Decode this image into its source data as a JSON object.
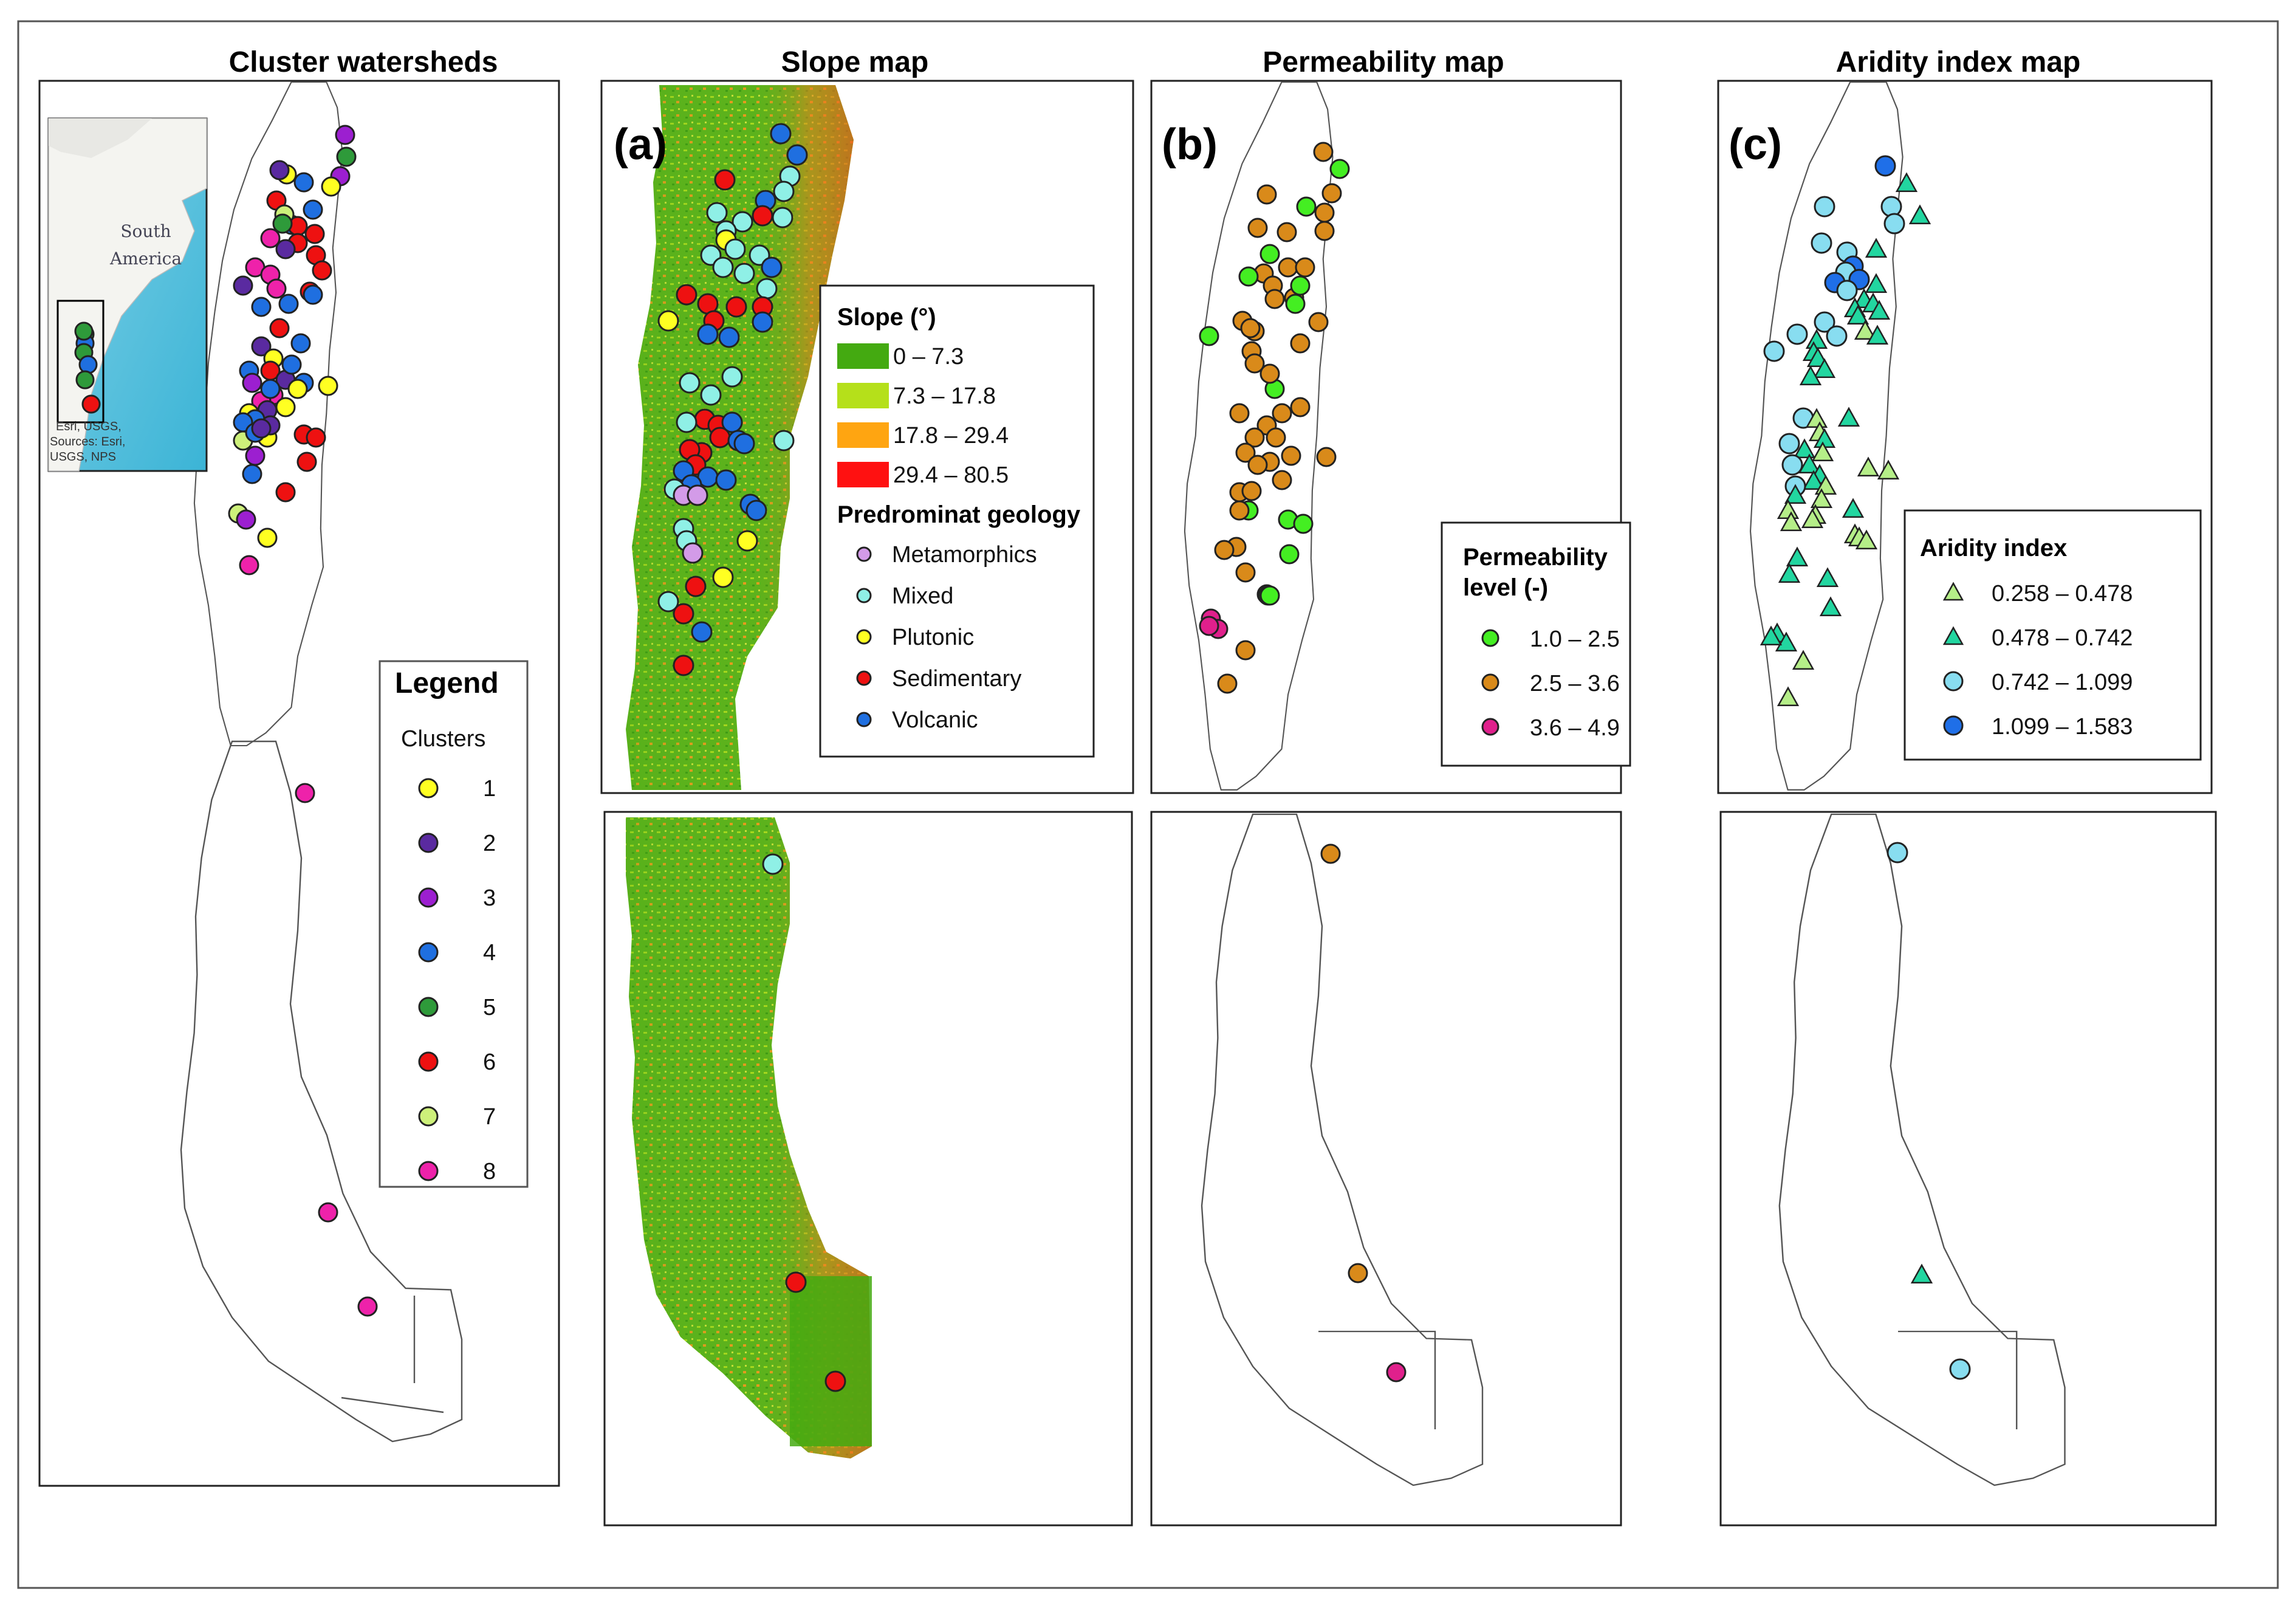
{
  "titles": {
    "cluster": "Cluster watersheds",
    "slope": "Slope map",
    "perm": "Permeability map",
    "aridity": "Aridity index map"
  },
  "panel_labels": {
    "a": "(a)",
    "b": "(b)",
    "c": "(c)"
  },
  "inset": {
    "continent_line1": "South",
    "continent_line2": "America",
    "credit_lines": [
      "Esri, USGS,",
      "Sources: Esri,",
      "USGS, NPS"
    ]
  },
  "cluster_legend": {
    "title": "Legend",
    "subtitle": "Clusters",
    "items": [
      {
        "label": "1",
        "color": "#ffff22"
      },
      {
        "label": "2",
        "color": "#5a2aa0"
      },
      {
        "label": "3",
        "color": "#9c1fd0"
      },
      {
        "label": "4",
        "color": "#1f6fe0"
      },
      {
        "label": "5",
        "color": "#2e9a3a"
      },
      {
        "label": "6",
        "color": "#ee1111"
      },
      {
        "label": "7",
        "color": "#cdf07a"
      },
      {
        "label": "8",
        "color": "#ee22aa"
      }
    ]
  },
  "slope_legend": {
    "title": "Slope (°)",
    "classes": [
      {
        "label": "0  – 7.3",
        "color": "#44aa11"
      },
      {
        "label": "7.3  – 17.8",
        "color": "#b5e01a"
      },
      {
        "label": "17.8  – 29.4",
        "color": "#ffa511"
      },
      {
        "label": "29.4 – 80.5",
        "color": "#ff1111"
      }
    ],
    "geology_title": "Predrominat geology",
    "geology": [
      {
        "label": "Metamorphics",
        "color": "#d39be8"
      },
      {
        "label": "Mixed",
        "color": "#8ff0e6"
      },
      {
        "label": "Plutonic",
        "color": "#ffff22"
      },
      {
        "label": "Sedimentary",
        "color": "#ee1111"
      },
      {
        "label": "Volcanic",
        "color": "#1f6fe0"
      }
    ]
  },
  "perm_legend": {
    "title_line1": "Permeability",
    "title_line2": "level (-)",
    "classes": [
      {
        "label": "1.0 – 2.5",
        "color": "#44ee22"
      },
      {
        "label": "2.5 – 3.6",
        "color": "#d98a1a"
      },
      {
        "label": "3.6 – 4.9",
        "color": "#e0208c"
      }
    ]
  },
  "aridity_legend": {
    "title": "Aridity index",
    "classes": [
      {
        "label": "0.258 – 0.478",
        "color": "#b5ee88",
        "marker": "triangle"
      },
      {
        "label": "0.478 – 0.742",
        "color": "#22d6a0",
        "marker": "triangle"
      },
      {
        "label": "0.742 – 1.099",
        "color": "#88ddf0",
        "marker": "circle"
      },
      {
        "label": "1.099 – 1.583",
        "color": "#1f6fe8",
        "marker": "circle"
      }
    ]
  },
  "colors": {
    "volcanic": "#1f6fe0",
    "mixed": "#8ff0e6",
    "plutonic": "#ffff22",
    "sedimentary": "#ee1111",
    "metamorphic": "#d39be8",
    "perm_low": "#44ee22",
    "perm_mid": "#d98a1a",
    "perm_high": "#e0208c",
    "ai1": "#b5ee88",
    "ai2": "#22d6a0",
    "ai3": "#88ddf0",
    "ai4": "#1f6fe8"
  }
}
